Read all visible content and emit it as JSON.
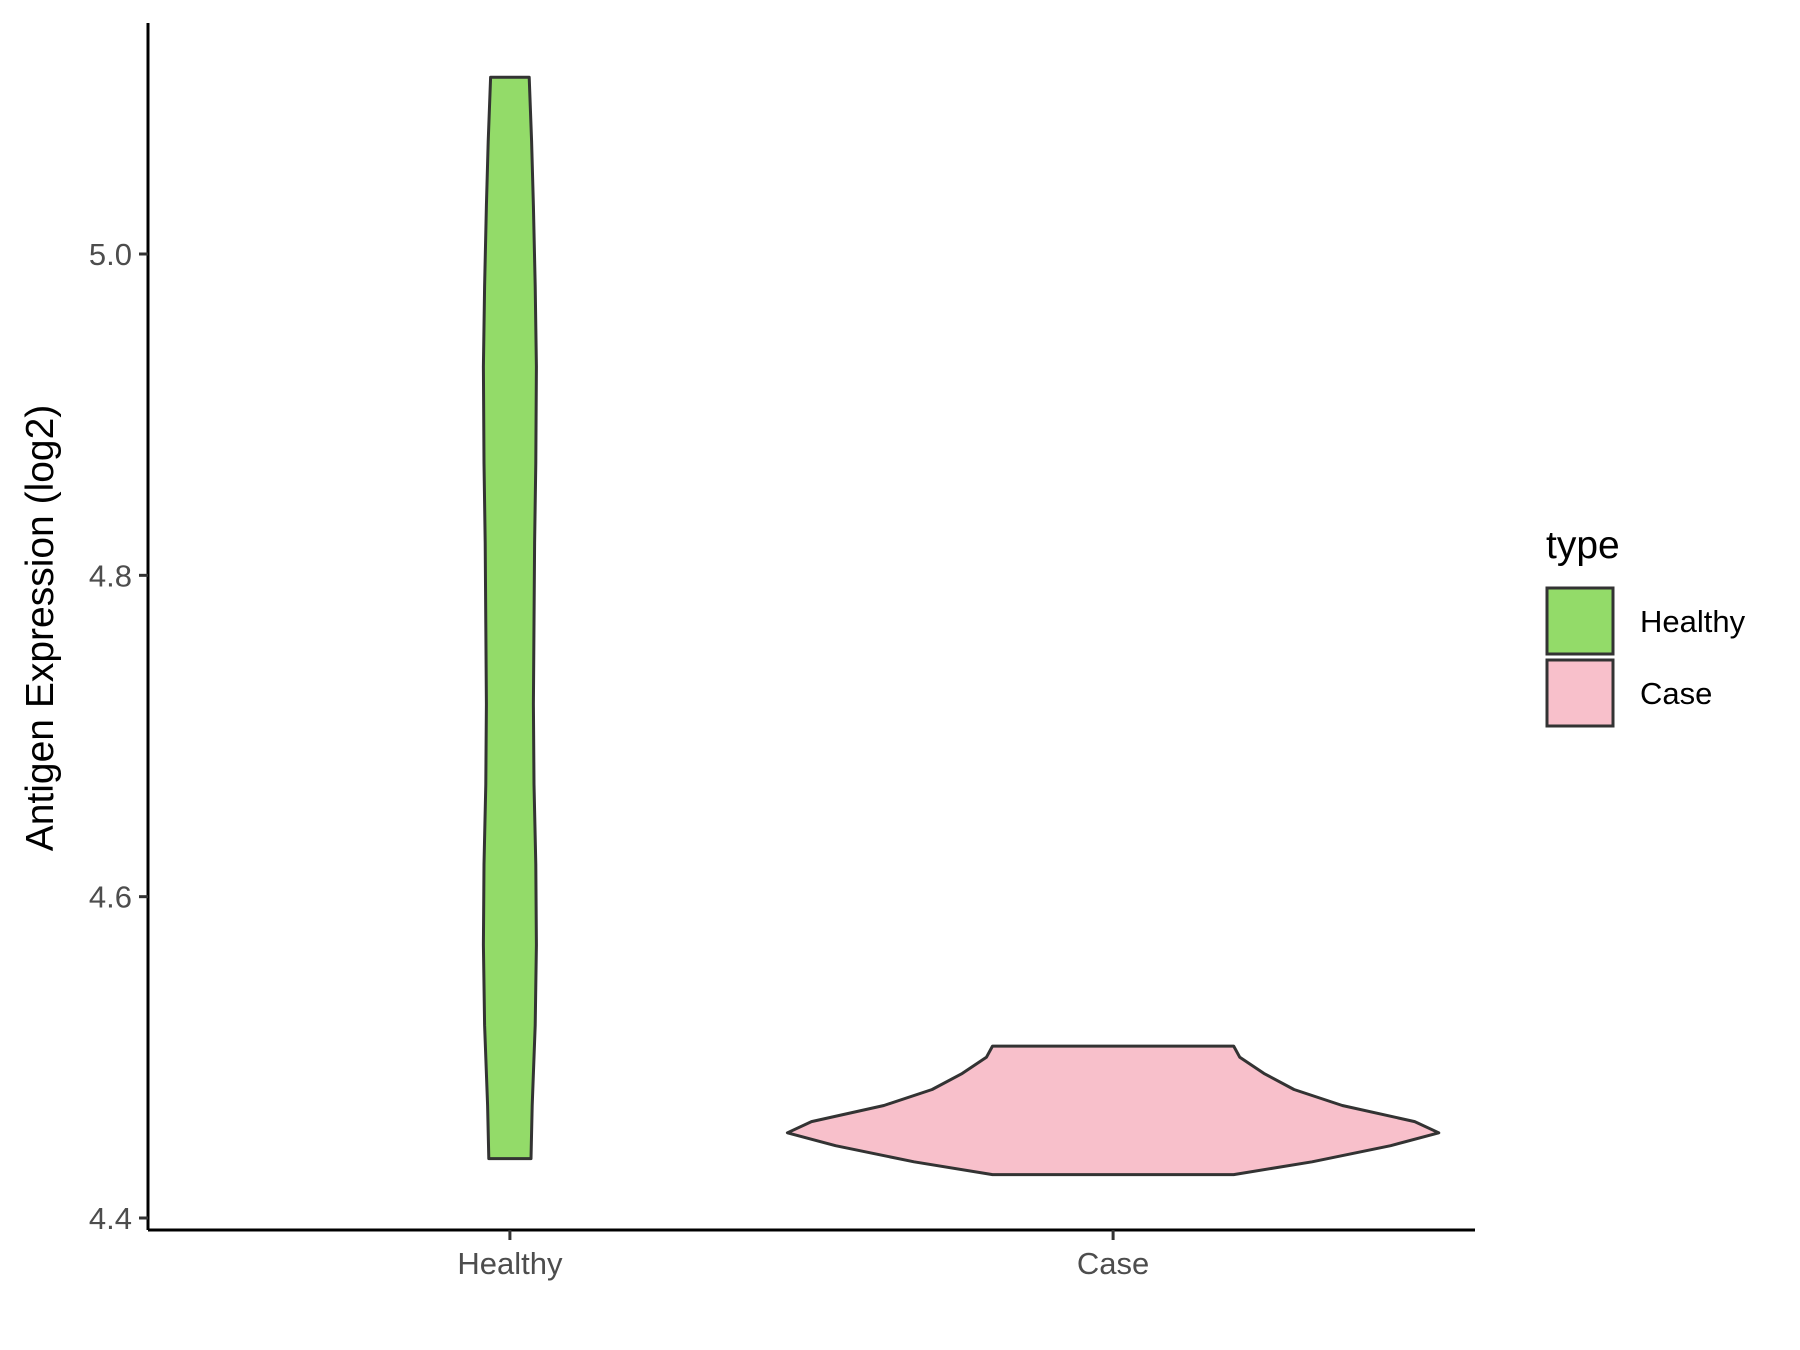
{
  "chart_data": {
    "type": "violin",
    "title": "",
    "xlabel": "",
    "ylabel": "Antigen Expression (log2)",
    "categories": [
      "Healthy",
      "Case"
    ],
    "ylim": [
      4.39,
      5.15
    ],
    "yticks": [
      4.4,
      4.6,
      4.8,
      5.0
    ],
    "ytick_labels": [
      "4.4",
      "4.6",
      "4.8",
      "5.0"
    ],
    "grid": false,
    "legend": {
      "title": "type",
      "position": "right",
      "entries": [
        {
          "label": "Healthy",
          "color": "#93DB69"
        },
        {
          "label": "Case",
          "color": "#F8C0CB"
        }
      ]
    },
    "series": [
      {
        "name": "Healthy",
        "color": "#93DB69",
        "y_range": [
          4.437,
          5.11
        ],
        "density_profile": [
          {
            "y": 4.437,
            "half_width": 0.035
          },
          {
            "y": 4.47,
            "half_width": 0.037
          },
          {
            "y": 4.52,
            "half_width": 0.042
          },
          {
            "y": 4.57,
            "half_width": 0.044
          },
          {
            "y": 4.62,
            "half_width": 0.043
          },
          {
            "y": 4.67,
            "half_width": 0.04
          },
          {
            "y": 4.72,
            "half_width": 0.039
          },
          {
            "y": 4.77,
            "half_width": 0.04
          },
          {
            "y": 4.82,
            "half_width": 0.041
          },
          {
            "y": 4.87,
            "half_width": 0.043
          },
          {
            "y": 4.93,
            "half_width": 0.044
          },
          {
            "y": 4.98,
            "half_width": 0.042
          },
          {
            "y": 5.03,
            "half_width": 0.039
          },
          {
            "y": 5.07,
            "half_width": 0.036
          },
          {
            "y": 5.11,
            "half_width": 0.032
          }
        ]
      },
      {
        "name": "Case",
        "color": "#F8C0CB",
        "y_range": [
          4.427,
          4.507
        ],
        "density_profile": [
          {
            "y": 4.427,
            "half_width": 0.2
          },
          {
            "y": 4.435,
            "half_width": 0.33
          },
          {
            "y": 4.445,
            "half_width": 0.46
          },
          {
            "y": 4.453,
            "half_width": 0.54
          },
          {
            "y": 4.46,
            "half_width": 0.5
          },
          {
            "y": 4.47,
            "half_width": 0.38
          },
          {
            "y": 4.48,
            "half_width": 0.3
          },
          {
            "y": 4.49,
            "half_width": 0.25
          },
          {
            "y": 4.5,
            "half_width": 0.21
          },
          {
            "y": 4.507,
            "half_width": 0.2
          }
        ]
      }
    ]
  }
}
